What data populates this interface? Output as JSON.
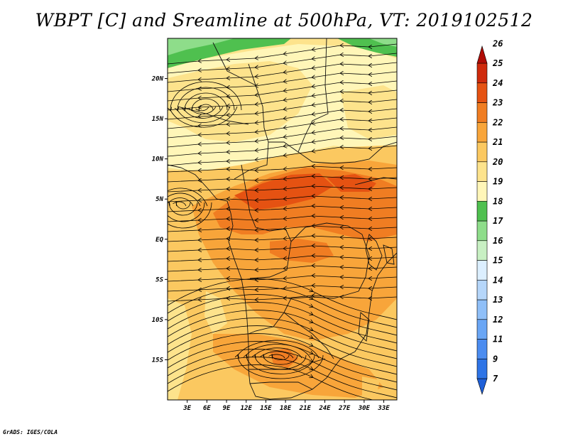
{
  "title": "WBPT [C] and Sreamline at 500hPa, VT: 2019102512",
  "credit": "GrADS: IGES/COLA",
  "map": {
    "variable": "WBPT",
    "units": "C",
    "level": "500hPa",
    "valid_time": "2019102512",
    "overlay": "Streamline",
    "lon_range": [
      0,
      35
    ],
    "lat_range": [
      -20,
      25
    ],
    "x_ticks": [
      {
        "value": 3,
        "label": "3E"
      },
      {
        "value": 6,
        "label": "6E"
      },
      {
        "value": 9,
        "label": "9E"
      },
      {
        "value": 12,
        "label": "12E"
      },
      {
        "value": 15,
        "label": "15E"
      },
      {
        "value": 18,
        "label": "18E"
      },
      {
        "value": 21,
        "label": "21E"
      },
      {
        "value": 24,
        "label": "24E"
      },
      {
        "value": 27,
        "label": "27E"
      },
      {
        "value": 30,
        "label": "30E"
      },
      {
        "value": 33,
        "label": "33E"
      }
    ],
    "y_ticks": [
      {
        "value": 20,
        "label": "20N"
      },
      {
        "value": 15,
        "label": "15N"
      },
      {
        "value": 10,
        "label": "10N"
      },
      {
        "value": 5,
        "label": "5N"
      },
      {
        "value": 0,
        "label": "EQ"
      },
      {
        "value": -5,
        "label": "5S"
      },
      {
        "value": -10,
        "label": "10S"
      },
      {
        "value": -15,
        "label": "15S"
      }
    ]
  },
  "colorbar": {
    "labels": [
      "7",
      "9",
      "11",
      "12",
      "13",
      "14",
      "15",
      "16",
      "17",
      "18",
      "19",
      "20",
      "21",
      "22",
      "23",
      "24",
      "25",
      "26"
    ],
    "colors": [
      "#1e5fd8",
      "#2e74e6",
      "#4b8cf0",
      "#6aa6f5",
      "#8fbff8",
      "#b5d6fa",
      "#dcefff",
      "#c8f0c3",
      "#8edd8a",
      "#4fc04f",
      "#fff6b8",
      "#fde38c",
      "#fbc860",
      "#f8a53a",
      "#f07d22",
      "#e55212",
      "#cf2a0c",
      "#b00c06"
    ]
  }
}
